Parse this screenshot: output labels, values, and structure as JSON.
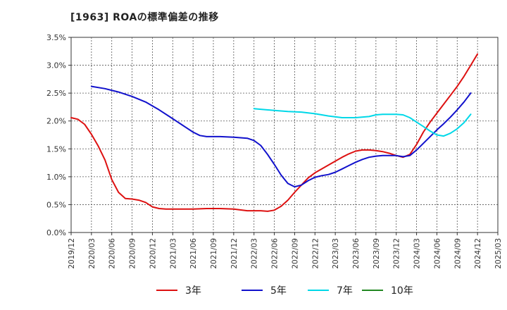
{
  "chart_data": {
    "type": "line",
    "title": "[1963]  ROAの標準偏差の推移",
    "xlabel": "",
    "ylabel": "",
    "ylim": [
      0,
      3.5
    ],
    "y_ticks": [
      "0.0%",
      "0.5%",
      "1.0%",
      "1.5%",
      "2.0%",
      "2.5%",
      "3.0%",
      "3.5%"
    ],
    "y_tick_values": [
      0,
      0.5,
      1.0,
      1.5,
      2.0,
      2.5,
      3.0,
      3.5
    ],
    "x_ticks": [
      "2019/12",
      "2020/03",
      "2020/06",
      "2020/09",
      "2020/12",
      "2021/03",
      "2021/06",
      "2021/09",
      "2021/12",
      "2022/03",
      "2022/06",
      "2022/09",
      "2022/12",
      "2023/03",
      "2023/06",
      "2023/09",
      "2023/12",
      "2024/03",
      "2024/06",
      "2024/09",
      "2024/12",
      "2025/03"
    ],
    "x_range_months": [
      0,
      63
    ],
    "grid": true,
    "legend_position": "bottom",
    "series": [
      {
        "name": "3年",
        "color": "#dd1111",
        "points": [
          [
            0,
            2.06
          ],
          [
            1,
            2.03
          ],
          [
            2,
            1.94
          ],
          [
            3,
            1.76
          ],
          [
            4,
            1.55
          ],
          [
            5,
            1.3
          ],
          [
            6,
            0.95
          ],
          [
            7,
            0.72
          ],
          [
            8,
            0.61
          ],
          [
            9,
            0.6
          ],
          [
            10,
            0.58
          ],
          [
            11,
            0.54
          ],
          [
            12,
            0.46
          ],
          [
            13,
            0.43
          ],
          [
            14,
            0.42
          ],
          [
            15,
            0.42
          ],
          [
            16,
            0.42
          ],
          [
            18,
            0.42
          ],
          [
            20,
            0.43
          ],
          [
            22,
            0.43
          ],
          [
            24,
            0.42
          ],
          [
            26,
            0.39
          ],
          [
            28,
            0.39
          ],
          [
            29,
            0.38
          ],
          [
            30,
            0.4
          ],
          [
            31,
            0.47
          ],
          [
            32,
            0.58
          ],
          [
            33,
            0.72
          ],
          [
            34,
            0.85
          ],
          [
            35,
            0.98
          ],
          [
            36,
            1.07
          ],
          [
            37,
            1.14
          ],
          [
            38,
            1.21
          ],
          [
            39,
            1.28
          ],
          [
            40,
            1.35
          ],
          [
            41,
            1.41
          ],
          [
            42,
            1.46
          ],
          [
            43,
            1.48
          ],
          [
            44,
            1.48
          ],
          [
            45,
            1.47
          ],
          [
            46,
            1.45
          ],
          [
            47,
            1.42
          ],
          [
            48,
            1.38
          ],
          [
            49,
            1.35
          ],
          [
            50,
            1.4
          ],
          [
            51,
            1.58
          ],
          [
            52,
            1.8
          ],
          [
            53,
            1.98
          ],
          [
            54,
            2.14
          ],
          [
            55,
            2.3
          ],
          [
            56,
            2.46
          ],
          [
            57,
            2.62
          ],
          [
            58,
            2.8
          ],
          [
            59,
            3.0
          ],
          [
            60,
            3.2
          ]
        ]
      },
      {
        "name": "5年",
        "color": "#1111cc",
        "points": [
          [
            3,
            2.62
          ],
          [
            5,
            2.58
          ],
          [
            7,
            2.52
          ],
          [
            9,
            2.44
          ],
          [
            11,
            2.34
          ],
          [
            13,
            2.2
          ],
          [
            15,
            2.04
          ],
          [
            17,
            1.88
          ],
          [
            18,
            1.8
          ],
          [
            19,
            1.74
          ],
          [
            20,
            1.72
          ],
          [
            21,
            1.72
          ],
          [
            22,
            1.72
          ],
          [
            24,
            1.71
          ],
          [
            26,
            1.69
          ],
          [
            27,
            1.65
          ],
          [
            28,
            1.56
          ],
          [
            29,
            1.4
          ],
          [
            30,
            1.22
          ],
          [
            31,
            1.03
          ],
          [
            32,
            0.88
          ],
          [
            33,
            0.82
          ],
          [
            34,
            0.85
          ],
          [
            35,
            0.93
          ],
          [
            36,
            0.99
          ],
          [
            37,
            1.02
          ],
          [
            38,
            1.04
          ],
          [
            39,
            1.08
          ],
          [
            40,
            1.14
          ],
          [
            41,
            1.2
          ],
          [
            42,
            1.26
          ],
          [
            43,
            1.31
          ],
          [
            44,
            1.35
          ],
          [
            45,
            1.37
          ],
          [
            46,
            1.38
          ],
          [
            47,
            1.38
          ],
          [
            48,
            1.38
          ],
          [
            49,
            1.36
          ],
          [
            50,
            1.38
          ],
          [
            51,
            1.48
          ],
          [
            52,
            1.6
          ],
          [
            53,
            1.72
          ],
          [
            54,
            1.84
          ],
          [
            55,
            1.95
          ],
          [
            56,
            2.07
          ],
          [
            57,
            2.2
          ],
          [
            58,
            2.34
          ],
          [
            59,
            2.5
          ]
        ]
      },
      {
        "name": "7年",
        "color": "#00d8e8",
        "points": [
          [
            27,
            2.22
          ],
          [
            28,
            2.21
          ],
          [
            30,
            2.19
          ],
          [
            32,
            2.17
          ],
          [
            34,
            2.16
          ],
          [
            36,
            2.13
          ],
          [
            38,
            2.09
          ],
          [
            40,
            2.06
          ],
          [
            42,
            2.06
          ],
          [
            44,
            2.08
          ],
          [
            45,
            2.11
          ],
          [
            46,
            2.12
          ],
          [
            48,
            2.12
          ],
          [
            49,
            2.11
          ],
          [
            50,
            2.06
          ],
          [
            51,
            1.98
          ],
          [
            52,
            1.9
          ],
          [
            53,
            1.82
          ],
          [
            54,
            1.75
          ],
          [
            55,
            1.73
          ],
          [
            56,
            1.78
          ],
          [
            57,
            1.86
          ],
          [
            58,
            1.97
          ],
          [
            59,
            2.12
          ]
        ]
      },
      {
        "name": "10年",
        "color": "#228822",
        "points": []
      }
    ]
  }
}
